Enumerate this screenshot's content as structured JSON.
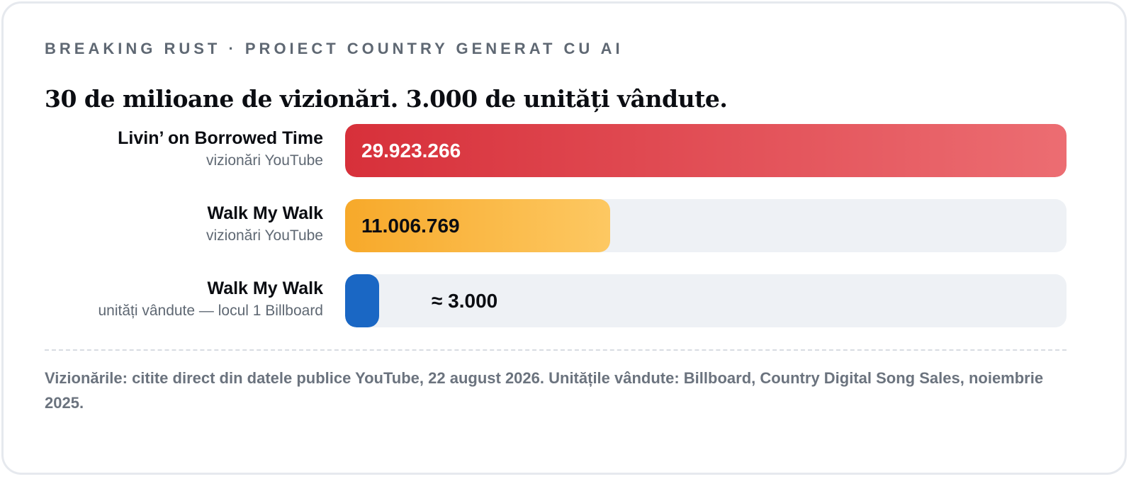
{
  "eyebrow": "BREAKING RUST · PROIECT COUNTRY GENERAT CU AI",
  "headline": "30 de milioane de vizionări. 3.000 de unități vândute.",
  "footnote": "Vizionările: citite direct din datele publice YouTube, 22 august 2026. Unitățile vândute: Billboard, Country Digital Song Sales, noiembrie 2025.",
  "chart_data": {
    "type": "bar",
    "orientation": "horizontal",
    "categories": [
      "Livin’ on Borrowed Time",
      "Walk My Walk",
      "Walk My Walk"
    ],
    "subtitles": [
      "vizionări YouTube",
      "vizionări YouTube",
      "unități vândute — locul 1 Billboard"
    ],
    "values": [
      29923266,
      11006769,
      3000
    ],
    "value_labels": [
      "29.923.266",
      "11.006.769",
      "≈ 3.000"
    ],
    "xlim": [
      0,
      29923266
    ],
    "colors": [
      "#d7303a",
      "#f7a92a",
      "#1a67c4"
    ],
    "value_label_colors": [
      "#ffffff",
      "#0b0d12",
      "#0b0d12"
    ],
    "grid": false
  }
}
